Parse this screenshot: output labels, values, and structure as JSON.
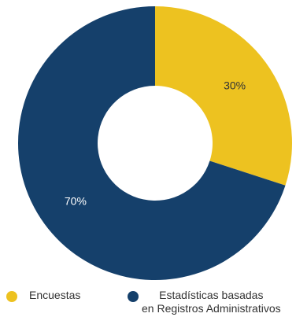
{
  "chart_data": {
    "type": "pie",
    "donut": true,
    "start_angle": "top, clockwise",
    "categories": [
      "Encuestas",
      "Estadísticas basadas\nen Registros Administrativos"
    ],
    "values": [
      30,
      70
    ],
    "labels": [
      "30%",
      "70%"
    ],
    "colors": [
      "#EDC220",
      "#15406B"
    ],
    "label_colors": [
      "#333333",
      "#ffffff"
    ],
    "legend": "bottom"
  }
}
